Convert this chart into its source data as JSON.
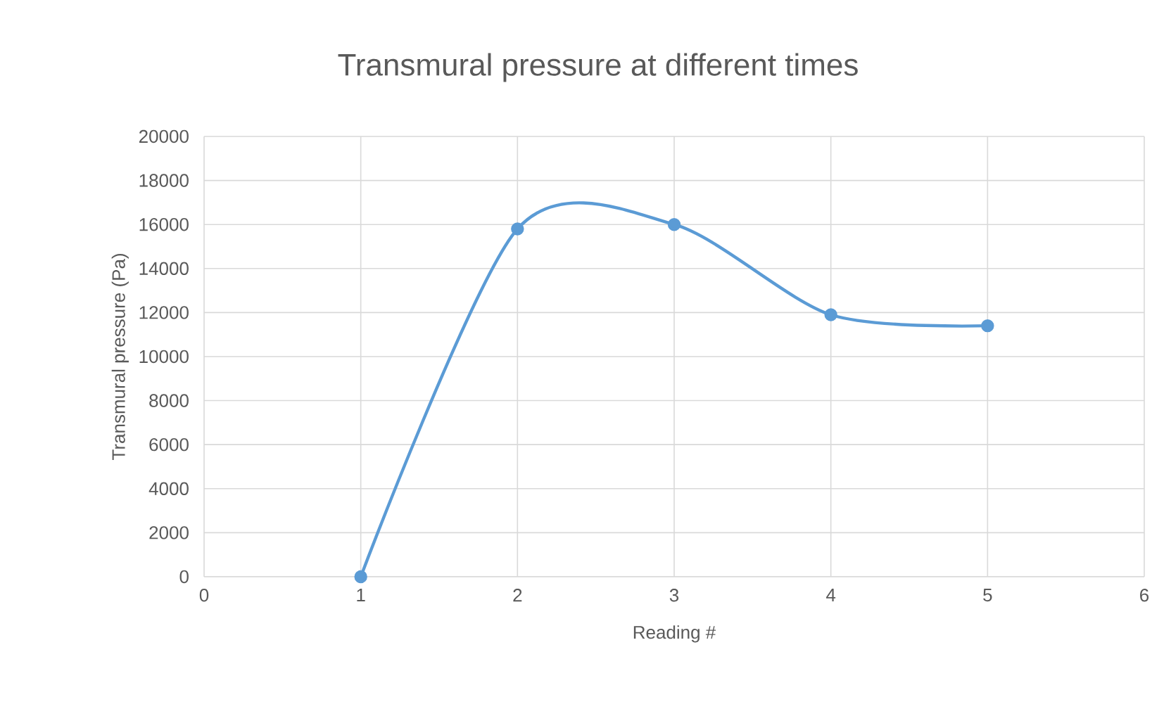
{
  "chart_data": {
    "type": "line",
    "title": "Transmural pressure at different times",
    "xlabel": "Reading #",
    "ylabel": "Transmural pressure (Pa)",
    "x": [
      1,
      2,
      3,
      4,
      5
    ],
    "series": [
      {
        "color": "#5b9bd5",
        "values": [
          0,
          15800,
          16000,
          11900,
          11400
        ]
      }
    ],
    "xlim": [
      0,
      6
    ],
    "xticks": [
      0,
      1,
      2,
      3,
      4,
      5,
      6
    ],
    "ylim": [
      0,
      20000
    ],
    "yticks": [
      0,
      2000,
      4000,
      6000,
      8000,
      10000,
      12000,
      14000,
      16000,
      18000,
      20000
    ],
    "grid": true,
    "marker": "circle",
    "line_style": "solid"
  }
}
